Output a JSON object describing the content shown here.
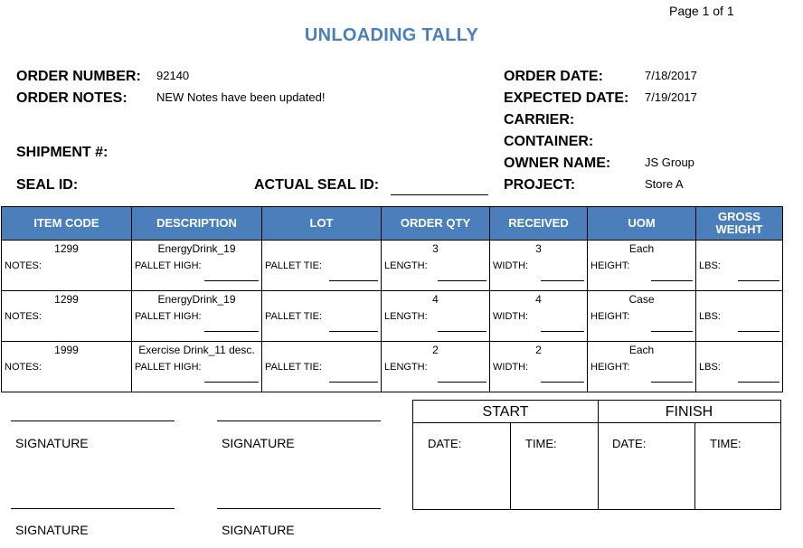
{
  "page_number": "Page 1 of 1",
  "title": "UNLOADING TALLY",
  "header": {
    "order_number_label": "ORDER NUMBER:",
    "order_number": "92140",
    "order_notes_label": "ORDER NOTES:",
    "order_notes": "NEW Notes have been updated!",
    "shipment_label": "SHIPMENT #:",
    "seal_id_label": "SEAL ID:",
    "actual_seal_id_label": "ACTUAL SEAL ID:",
    "order_date_label": "ORDER DATE:",
    "order_date": "7/18/2017",
    "expected_date_label": "EXPECTED DATE:",
    "expected_date": "7/19/2017",
    "carrier_label": "CARRIER:",
    "container_label": "CONTAINER:",
    "owner_name_label": "OWNER NAME:",
    "owner_name": "JS Group",
    "project_label": "PROJECT:",
    "project": "Store A"
  },
  "table": {
    "columns": [
      "ITEM CODE",
      "DESCRIPTION",
      "LOT",
      "ORDER QTY",
      "RECEIVED",
      "UOM",
      "GROSS WEIGHT"
    ],
    "sub_labels": {
      "notes": "NOTES:",
      "pallet_high": "PALLET HIGH:",
      "pallet_tie": "PALLET TIE:",
      "length": "LENGTH:",
      "width": "WIDTH:",
      "height": "HEIGHT:",
      "lbs": "LBS:"
    },
    "rows": [
      {
        "item_code": "1299",
        "description": "EnergyDrink_19",
        "lot": "",
        "order_qty": "3",
        "received": "3",
        "uom": "Each",
        "gross_weight": ""
      },
      {
        "item_code": "1299",
        "description": "EnergyDrink_19",
        "lot": "",
        "order_qty": "4",
        "received": "4",
        "uom": "Case",
        "gross_weight": ""
      },
      {
        "item_code": "1999",
        "description": "Exercise Drink_11 desc.",
        "lot": "",
        "order_qty": "2",
        "received": "2",
        "uom": "Each",
        "gross_weight": ""
      }
    ]
  },
  "signatures": {
    "label": "SIGNATURE"
  },
  "timebox": {
    "start": "START",
    "finish": "FINISH",
    "date_label": "DATE:",
    "time_label": "TIME:"
  }
}
